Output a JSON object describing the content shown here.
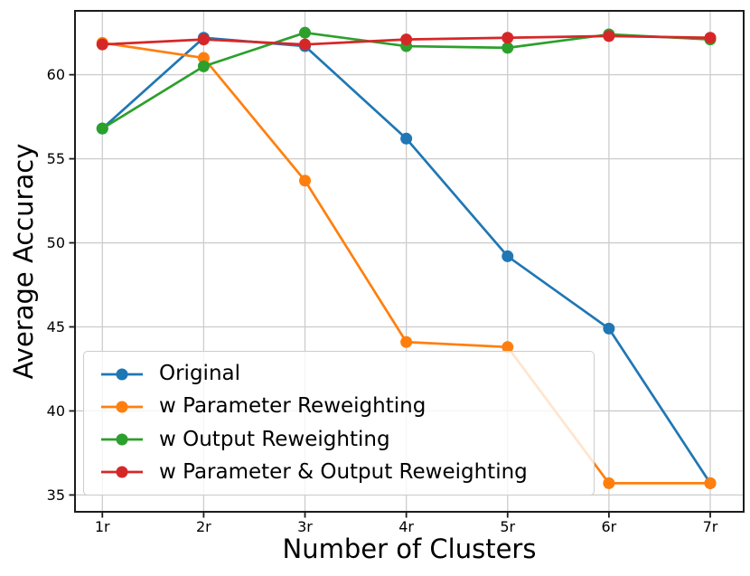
{
  "chart_data": {
    "type": "line",
    "title": "",
    "xlabel": "Number of Clusters",
    "ylabel": "Average Accuracy",
    "categories": [
      "1r",
      "2r",
      "3r",
      "4r",
      "5r",
      "6r",
      "7r"
    ],
    "x_numeric": [
      1,
      2,
      3,
      4,
      5,
      6,
      7
    ],
    "series": [
      {
        "name": "Original",
        "color": "#1f77b4",
        "values": [
          56.8,
          62.2,
          61.7,
          56.2,
          49.2,
          44.9,
          35.7
        ]
      },
      {
        "name": "w Parameter Reweighting",
        "color": "#ff7f0e",
        "values": [
          61.9,
          61.0,
          53.7,
          44.1,
          43.8,
          35.7,
          35.7
        ]
      },
      {
        "name": "w Output Reweighting",
        "color": "#2ca02c",
        "values": [
          56.8,
          60.5,
          62.5,
          61.7,
          61.6,
          62.4,
          62.1
        ]
      },
      {
        "name": "w Parameter & Output Reweighting",
        "color": "#d62728",
        "values": [
          61.8,
          62.1,
          61.8,
          62.1,
          62.2,
          62.3,
          62.2
        ]
      }
    ],
    "yticks": [
      35,
      40,
      45,
      50,
      55,
      60
    ],
    "ylim": [
      34.0,
      63.8
    ],
    "xlim": [
      0.73,
      7.33
    ],
    "grid": true,
    "legend_position": "lower left",
    "marker": "circle",
    "colors": {
      "grid": "#cccccc",
      "spine": "#1c1c1c",
      "tick_text": "#000000",
      "background": "#ffffff"
    }
  }
}
